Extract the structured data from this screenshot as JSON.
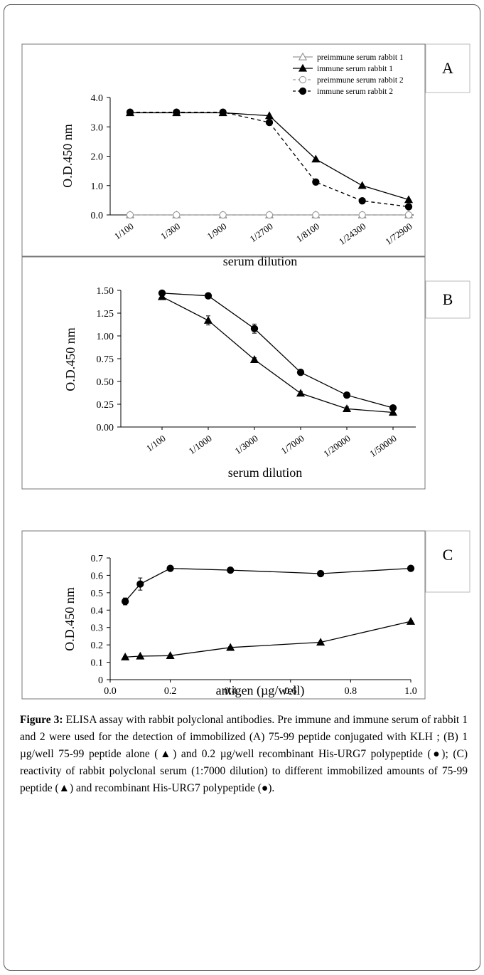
{
  "chart_data": [
    {
      "panel_label": "A",
      "type": "line",
      "categories": [
        "1/100",
        "1/300",
        "1/900",
        "1/2700",
        "1/8100",
        "1/24300",
        "1/72900"
      ],
      "xlabel": "serum dilution",
      "ylabel": "O.D.450 nm",
      "yticks": [
        "0.0",
        "1.0",
        "2.0",
        "3.0",
        "4.0"
      ],
      "ylim": [
        0,
        4
      ],
      "legend_position": "top-right",
      "series": [
        {
          "name": "preimmune serum rabbit 1",
          "marker": "open-triangle",
          "dash": "solid",
          "values": [
            0,
            0,
            0,
            0,
            0,
            0,
            0
          ]
        },
        {
          "name": "immune serum rabbit 1",
          "marker": "filled-triangle",
          "dash": "solid",
          "values": [
            3.48,
            3.48,
            3.48,
            3.38,
            1.9,
            1.0,
            0.52
          ]
        },
        {
          "name": "preimmune serum rabbit 2",
          "marker": "open-circle",
          "dash": "dashed",
          "values": [
            0,
            0,
            0,
            0,
            0,
            0,
            0
          ]
        },
        {
          "name": "immune serum rabbit 2",
          "marker": "filled-circle",
          "dash": "dashed",
          "values": [
            3.5,
            3.5,
            3.5,
            3.15,
            1.12,
            0.48,
            0.28
          ]
        }
      ]
    },
    {
      "panel_label": "B",
      "type": "line",
      "categories": [
        "1/100",
        "1/1000",
        "1/3000",
        "1/7000",
        "1/20000",
        "1/50000"
      ],
      "xlabel": "serum dilution",
      "ylabel": "O.D.450 nm",
      "yticks": [
        "0.00",
        "0.25",
        "0.50",
        "0.75",
        "1.00",
        "1.25",
        "1.50"
      ],
      "ylim": [
        0,
        1.5
      ],
      "series": [
        {
          "marker": "filled-triangle",
          "values": [
            1.43,
            1.17,
            0.74,
            0.37,
            0.2,
            0.16
          ],
          "errors": [
            0.02,
            0.05,
            0.02,
            0.02,
            0.02,
            0.02
          ]
        },
        {
          "marker": "filled-circle",
          "values": [
            1.47,
            1.44,
            1.08,
            0.6,
            0.35,
            0.21
          ],
          "errors": [
            0.01,
            0.01,
            0.05,
            0.01,
            0.01,
            0.01
          ]
        }
      ]
    },
    {
      "panel_label": "C",
      "type": "line",
      "xlabel": "antigen (µg/well)",
      "ylabel": "O.D.450 nm",
      "xticks": [
        "0.0",
        "0.2",
        "0.4",
        "0.6",
        "0.8",
        "1.0"
      ],
      "yticks": [
        "0",
        "0.1",
        "0.2",
        "0.3",
        "0.4",
        "0.5",
        "0.6",
        "0.7"
      ],
      "xlim": [
        0,
        1.0
      ],
      "ylim": [
        0,
        0.7
      ],
      "series": [
        {
          "marker": "filled-circle",
          "x": [
            0.05,
            0.1,
            0.2,
            0.4,
            0.7,
            1.0
          ],
          "values": [
            0.45,
            0.55,
            0.64,
            0.63,
            0.61,
            0.64
          ],
          "errors": [
            0.02,
            0.035,
            0.01,
            0.008,
            0.015,
            0.015
          ]
        },
        {
          "marker": "filled-triangle",
          "x": [
            0.05,
            0.1,
            0.2,
            0.4,
            0.7,
            1.0
          ],
          "values": [
            0.13,
            0.135,
            0.138,
            0.185,
            0.215,
            0.335
          ],
          "errors": [
            0.005,
            0.005,
            0.005,
            0.005,
            0.005,
            0.005
          ]
        }
      ]
    }
  ],
  "caption": {
    "label": "Figure 3:",
    "text": " ELISA assay with rabbit polyclonal antibodies. Pre immune and immune serum of rabbit 1 and 2 were used for the detection of immobilized (A) 75-99 peptide conjugated with KLH ; (B) 1 µg/well 75-99 peptide alone (▲) and 0.2 µg/well recombinant His-URG7 polypeptide (●); (C) reactivity of rabbit polyclonal serum (1:7000 dilution) to different immobilized amounts of 75-99 peptide (▲) and recombinant His-URG7 polypeptide (●)."
  }
}
